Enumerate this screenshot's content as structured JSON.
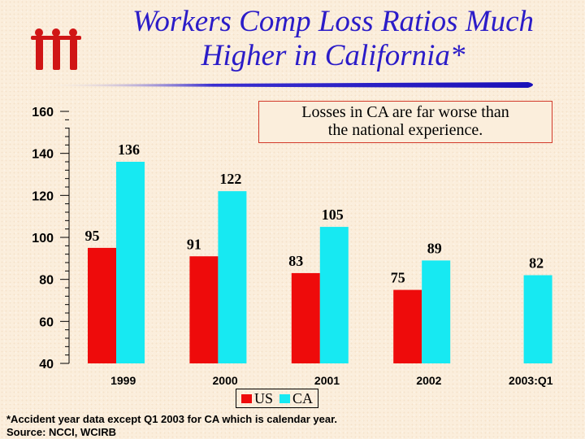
{
  "title": "Workers Comp Loss Ratios Much Higher in California*",
  "title_lines": [
    "Workers Comp Loss Ratios Much",
    "Higher in California*"
  ],
  "callout_lines": [
    "Losses in CA are far worse than",
    "the national experience."
  ],
  "footnote_lines": [
    "*Accident year data except Q1 2003 for CA which is calendar year.",
    "Source: NCCI, WCIRB"
  ],
  "colors": {
    "title": "#2b1cc8",
    "us": "#ee0b0b",
    "ca": "#17e9f2",
    "accent": "#d01515"
  },
  "logo": "iii-logo",
  "chart_data": {
    "type": "bar",
    "categories": [
      "1999",
      "2000",
      "2001",
      "2002",
      "2003:Q1"
    ],
    "series": [
      {
        "name": "US",
        "values": [
          95,
          91,
          83,
          75,
          null
        ]
      },
      {
        "name": "CA",
        "values": [
          136,
          122,
          105,
          89,
          82
        ]
      }
    ],
    "yticks": [
      "40",
      "60",
      "80",
      "100",
      "120",
      "140",
      "160"
    ],
    "ylim": [
      40,
      160
    ],
    "legend_position": "bottom",
    "grid": false
  }
}
